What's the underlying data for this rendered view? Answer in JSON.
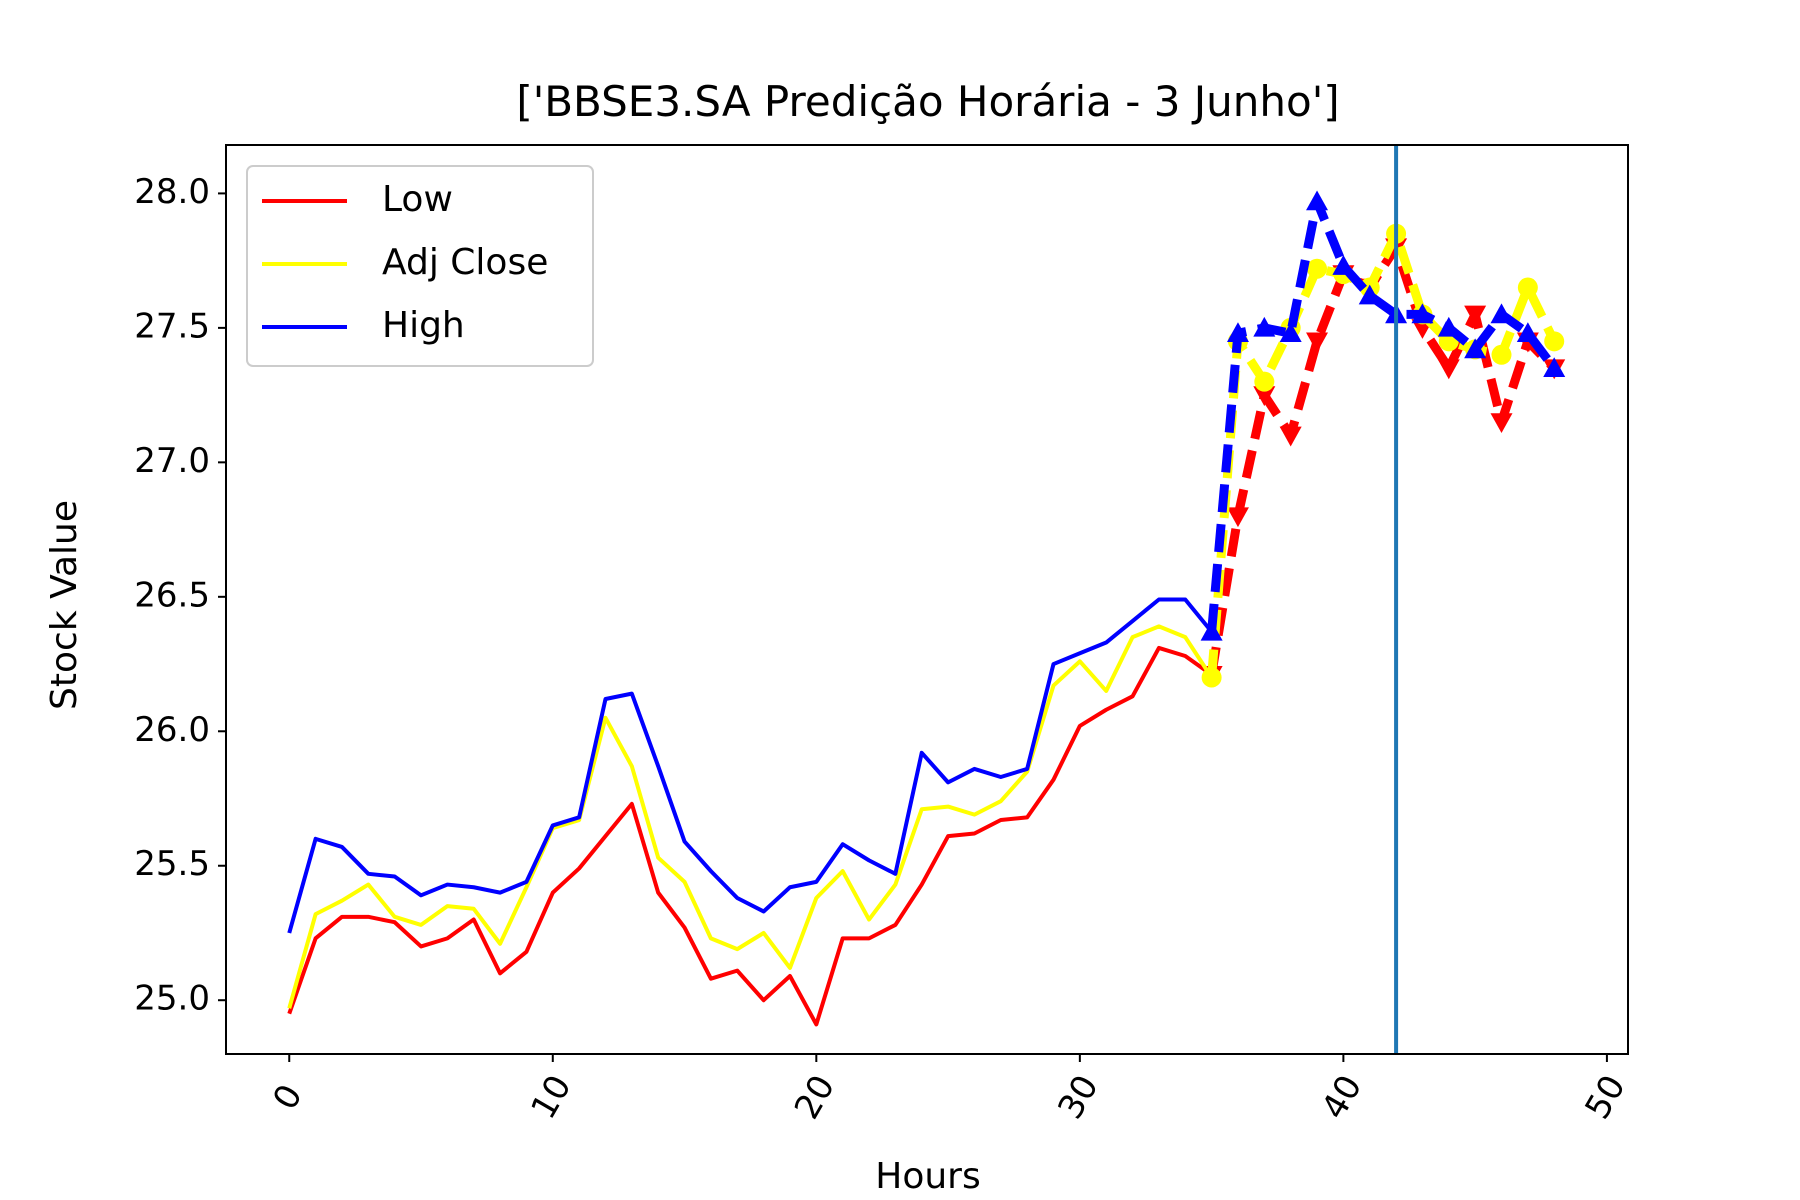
{
  "chart_data": {
    "type": "line",
    "title": "['BBSE3.SA Predição Horária - 3 Junho']",
    "xlabel": "Hours",
    "ylabel": "Stock Value",
    "xlim": [
      -2.4,
      50.8
    ],
    "ylim": [
      24.8,
      28.18
    ],
    "xticks": [
      0,
      10,
      20,
      30,
      40,
      50
    ],
    "yticks": [
      25.0,
      25.5,
      26.0,
      26.5,
      27.0,
      27.5,
      28.0
    ],
    "xtick_labels": [
      "0",
      "10",
      "20",
      "30",
      "40",
      "50"
    ],
    "ytick_labels": [
      "25.0",
      "25.5",
      "26.0",
      "26.5",
      "27.0",
      "27.5",
      "28.0"
    ],
    "grid": false,
    "legend_position": "upper-left",
    "vline_x": 42,
    "vline_color": "#1f77b4",
    "series": [
      {
        "name": "Low",
        "color": "#ff0000",
        "marker": "triangle-down",
        "actual": [
          24.95,
          25.23,
          25.31,
          25.31,
          25.29,
          25.2,
          25.23,
          25.3,
          25.1,
          25.18,
          25.4,
          25.49,
          25.61,
          25.73,
          25.4,
          25.27,
          25.08,
          25.11,
          25.0,
          25.09,
          24.91,
          25.23,
          25.23,
          25.28,
          25.43,
          25.61,
          25.62,
          25.67,
          25.68,
          25.82,
          26.02,
          26.08,
          26.13,
          26.31,
          26.28,
          26.21
        ],
        "predicted_x": [
          35,
          36,
          37,
          38,
          39,
          40,
          41,
          42,
          43,
          44,
          45,
          46,
          47,
          48
        ],
        "predicted": [
          26.21,
          26.8,
          27.25,
          27.1,
          27.45,
          27.7,
          27.65,
          27.8,
          27.5,
          27.35,
          27.55,
          27.15,
          27.45,
          27.35
        ]
      },
      {
        "name": "Adj Close",
        "color": "#ffff00",
        "marker": "circle",
        "actual": [
          24.97,
          25.32,
          25.37,
          25.43,
          25.31,
          25.28,
          25.35,
          25.34,
          25.21,
          25.42,
          25.64,
          25.67,
          26.05,
          25.87,
          25.53,
          25.44,
          25.23,
          25.19,
          25.25,
          25.12,
          25.38,
          25.48,
          25.3,
          25.43,
          25.71,
          25.72,
          25.69,
          25.74,
          25.85,
          26.17,
          26.26,
          26.15,
          26.35,
          26.39,
          26.35,
          26.2
        ],
        "predicted_x": [
          35,
          36,
          37,
          38,
          39,
          40,
          41,
          42,
          43,
          44,
          45,
          46,
          47,
          48
        ],
        "predicted": [
          26.2,
          27.45,
          27.3,
          27.5,
          27.72,
          27.7,
          27.65,
          27.85,
          27.55,
          27.45,
          27.42,
          27.4,
          27.65,
          27.45
        ]
      },
      {
        "name": "High",
        "color": "#0000ff",
        "marker": "triangle-up",
        "actual": [
          25.25,
          25.6,
          25.57,
          25.47,
          25.46,
          25.39,
          25.43,
          25.42,
          25.4,
          25.44,
          25.65,
          25.68,
          26.12,
          26.14,
          25.87,
          25.59,
          25.48,
          25.38,
          25.33,
          25.42,
          25.44,
          25.58,
          25.52,
          25.47,
          25.92,
          25.81,
          25.86,
          25.83,
          25.86,
          26.25,
          26.29,
          26.33,
          26.41,
          26.49,
          26.49,
          26.37
        ],
        "predicted_x": [
          35,
          36,
          37,
          38,
          39,
          40,
          41,
          42,
          43,
          44,
          45,
          46,
          47,
          48
        ],
        "predicted": [
          26.37,
          27.48,
          27.5,
          27.48,
          27.97,
          27.73,
          27.62,
          27.55,
          27.55,
          27.5,
          27.42,
          27.55,
          27.48,
          27.35
        ]
      }
    ]
  }
}
